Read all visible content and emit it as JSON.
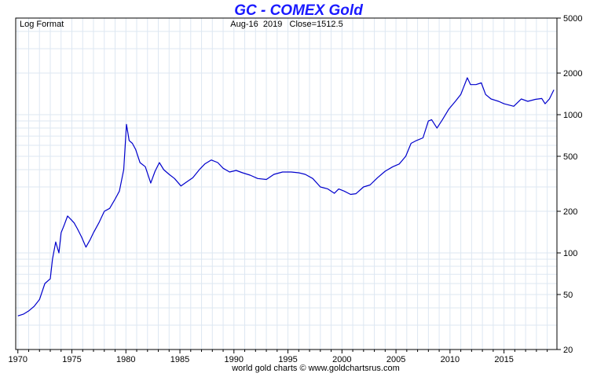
{
  "header": {
    "title": "GC - COMEX Gold",
    "left_note": "Log Format",
    "center_note": "Aug-16  2019   Close=1512.5"
  },
  "footer": {
    "credit": "world gold charts © www.goldchartsrus.com"
  },
  "colors": {
    "title": "#1a1aff",
    "line": "#0000cc",
    "grid": "#dde7f2",
    "frame": "#000000",
    "background": "#ffffff"
  },
  "chart_data": {
    "type": "line",
    "title": "GC - COMEX Gold",
    "xlabel": "",
    "ylabel": "",
    "y_scale": "log",
    "ylim": [
      20,
      5000
    ],
    "xlim": [
      1969.8,
      2019.9
    ],
    "y_ticks": [
      20,
      50,
      100,
      200,
      500,
      1000,
      2000,
      5000
    ],
    "x_ticks": [
      1970,
      1975,
      1980,
      1985,
      1990,
      1995,
      2000,
      2005,
      2010,
      2015
    ],
    "grid": true,
    "last_close": 1512.5,
    "series": [
      {
        "x": [
          1970.0,
          1970.5,
          1971.0,
          1971.5,
          1972.0,
          1972.5,
          1973.0,
          1973.2,
          1973.5,
          1973.8,
          1974.0,
          1974.3,
          1974.6,
          1974.9,
          1975.2,
          1975.5,
          1975.9,
          1976.3,
          1976.7,
          1977.0,
          1977.5,
          1978.0,
          1978.5,
          1979.0,
          1979.4,
          1979.8,
          1980.05,
          1980.3,
          1980.6,
          1980.9,
          1981.3,
          1981.8,
          1982.3,
          1982.7,
          1983.1,
          1983.5,
          1984.0,
          1984.5,
          1985.1,
          1985.6,
          1986.2,
          1986.8,
          1987.3,
          1987.9,
          1988.5,
          1989.0,
          1989.6,
          1990.2,
          1990.8,
          1991.5,
          1992.2,
          1993.0,
          1993.7,
          1994.5,
          1995.3,
          1996.0,
          1996.6,
          1997.3,
          1998.0,
          1998.7,
          1999.3,
          1999.7,
          2000.2,
          2000.8,
          2001.3,
          2002.0,
          2002.6,
          2003.3,
          2004.0,
          2004.7,
          2005.3,
          2005.9,
          2006.4,
          2006.9,
          2007.5,
          2008.0,
          2008.3,
          2008.8,
          2009.3,
          2009.9,
          2010.5,
          2011.0,
          2011.6,
          2011.9,
          2012.4,
          2012.9,
          2013.3,
          2013.8,
          2014.5,
          2015.0,
          2015.9,
          2016.6,
          2017.2,
          2017.9,
          2018.5,
          2018.8,
          2019.2,
          2019.62
        ],
        "y": [
          35,
          36,
          38,
          41,
          46,
          60,
          65,
          90,
          120,
          100,
          140,
          160,
          185,
          175,
          165,
          150,
          130,
          110,
          125,
          140,
          165,
          200,
          210,
          245,
          280,
          400,
          850,
          650,
          620,
          560,
          450,
          420,
          320,
          390,
          450,
          400,
          370,
          345,
          305,
          325,
          350,
          400,
          440,
          470,
          450,
          410,
          385,
          395,
          380,
          365,
          345,
          340,
          370,
          385,
          385,
          380,
          370,
          345,
          300,
          290,
          270,
          290,
          280,
          265,
          268,
          300,
          310,
          350,
          390,
          420,
          440,
          500,
          620,
          650,
          680,
          900,
          920,
          800,
          920,
          1100,
          1250,
          1400,
          1850,
          1650,
          1650,
          1700,
          1400,
          1300,
          1250,
          1200,
          1150,
          1300,
          1250,
          1290,
          1310,
          1200,
          1300,
          1512.5
        ]
      }
    ]
  }
}
